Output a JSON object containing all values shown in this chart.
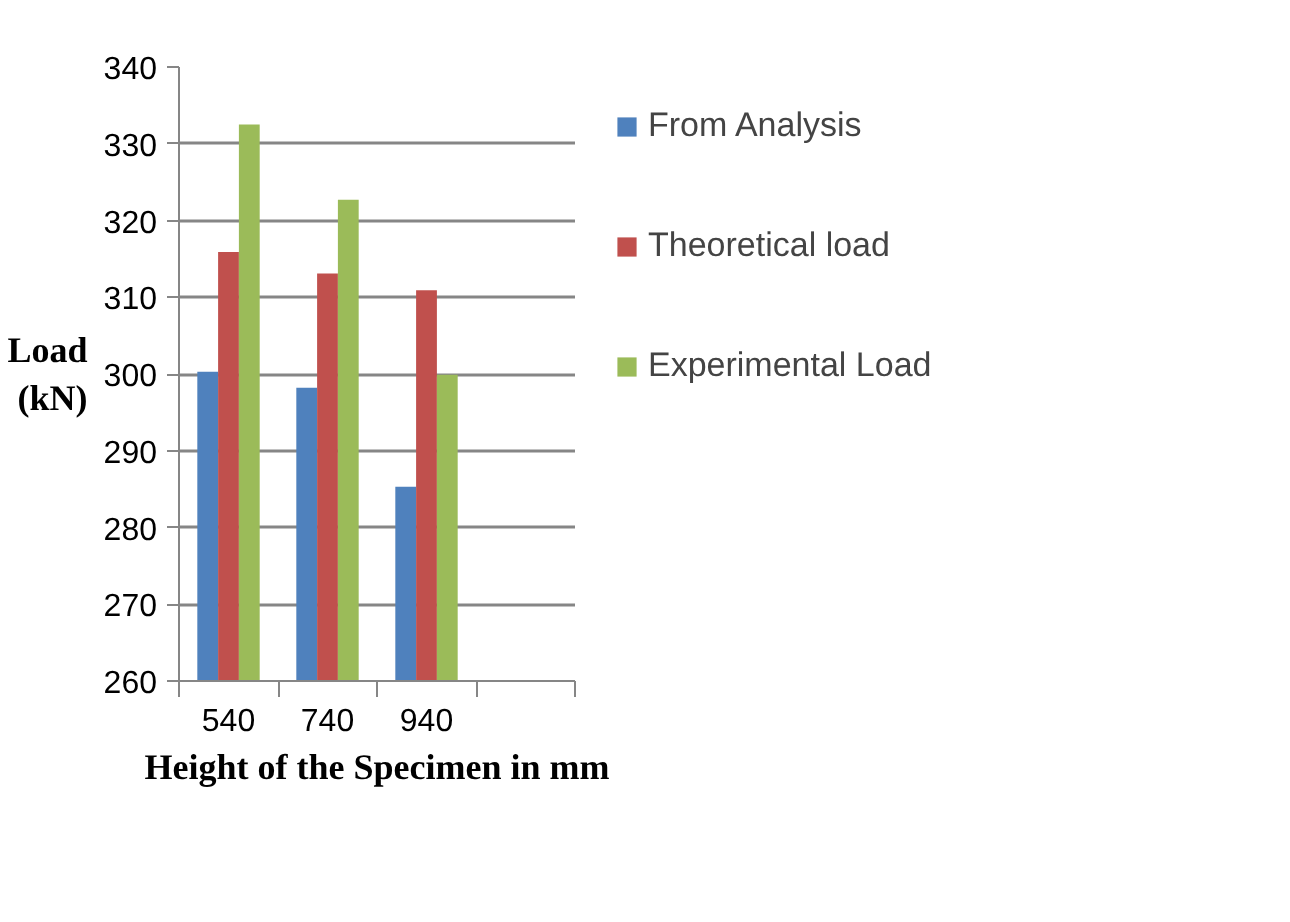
{
  "chart_data": {
    "type": "bar",
    "xlabel": "Height of the Specimen in mm",
    "ylabel": "Load (kN)",
    "categories": [
      "540",
      "740",
      "940",
      null
    ],
    "series": [
      {
        "name": "From Analysis",
        "color": "#4f81bd",
        "values": [
          300.3,
          298.2,
          285.3,
          null
        ]
      },
      {
        "name": "Theoretical load",
        "color": "#c0504d",
        "values": [
          315.9,
          313.1,
          310.9,
          null
        ]
      },
      {
        "name": "Experimental Load",
        "color": "#9bbb59",
        "values": [
          332.5,
          322.7,
          299.9,
          null
        ]
      }
    ],
    "ylim": [
      260,
      340
    ],
    "yticks": [
      260,
      270,
      280,
      290,
      300,
      310,
      320,
      330,
      340
    ],
    "grid": "y",
    "legend": "right"
  }
}
